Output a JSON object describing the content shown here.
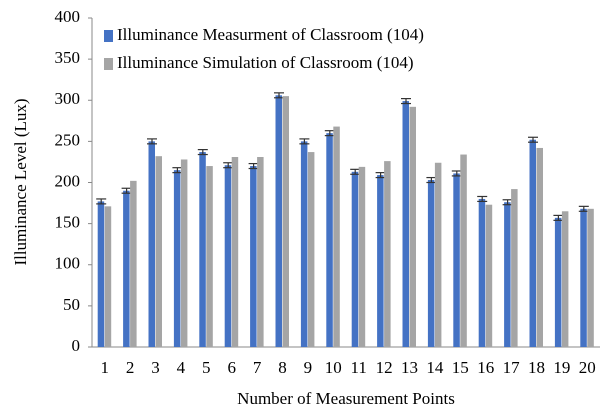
{
  "chart_data": {
    "type": "bar",
    "xlabel": "Number of Measurement Points",
    "ylabel": "Illuminance Level (Lux)",
    "categories": [
      "1",
      "2",
      "3",
      "4",
      "5",
      "6",
      "7",
      "8",
      "9",
      "10",
      "11",
      "12",
      "13",
      "14",
      "15",
      "16",
      "17",
      "18",
      "19",
      "20"
    ],
    "series": [
      {
        "name": "Illuminance Measurment of Classroom (104)",
        "color": "#4472c4",
        "values": [
          177,
          190,
          250,
          215,
          237,
          221,
          220,
          306,
          250,
          260,
          213,
          209,
          299,
          203,
          211,
          180,
          176,
          252,
          157,
          168
        ],
        "errors": [
          3,
          3,
          3,
          3,
          3,
          3,
          3,
          3,
          3,
          3,
          3,
          3,
          3,
          3,
          3,
          3,
          3,
          3,
          3,
          3
        ]
      },
      {
        "name": "Illuminance Simulation of Classroom (104)",
        "color": "#a5a5a5",
        "values": [
          171,
          202,
          232,
          228,
          220,
          231,
          231,
          305,
          237,
          268,
          219,
          226,
          292,
          224,
          234,
          173,
          192,
          242,
          165,
          168
        ]
      }
    ],
    "ylim": [
      0,
      400
    ],
    "yticks": [
      0,
      50,
      100,
      150,
      200,
      250,
      300,
      350,
      400
    ],
    "grid": false,
    "legend": "upper left"
  }
}
